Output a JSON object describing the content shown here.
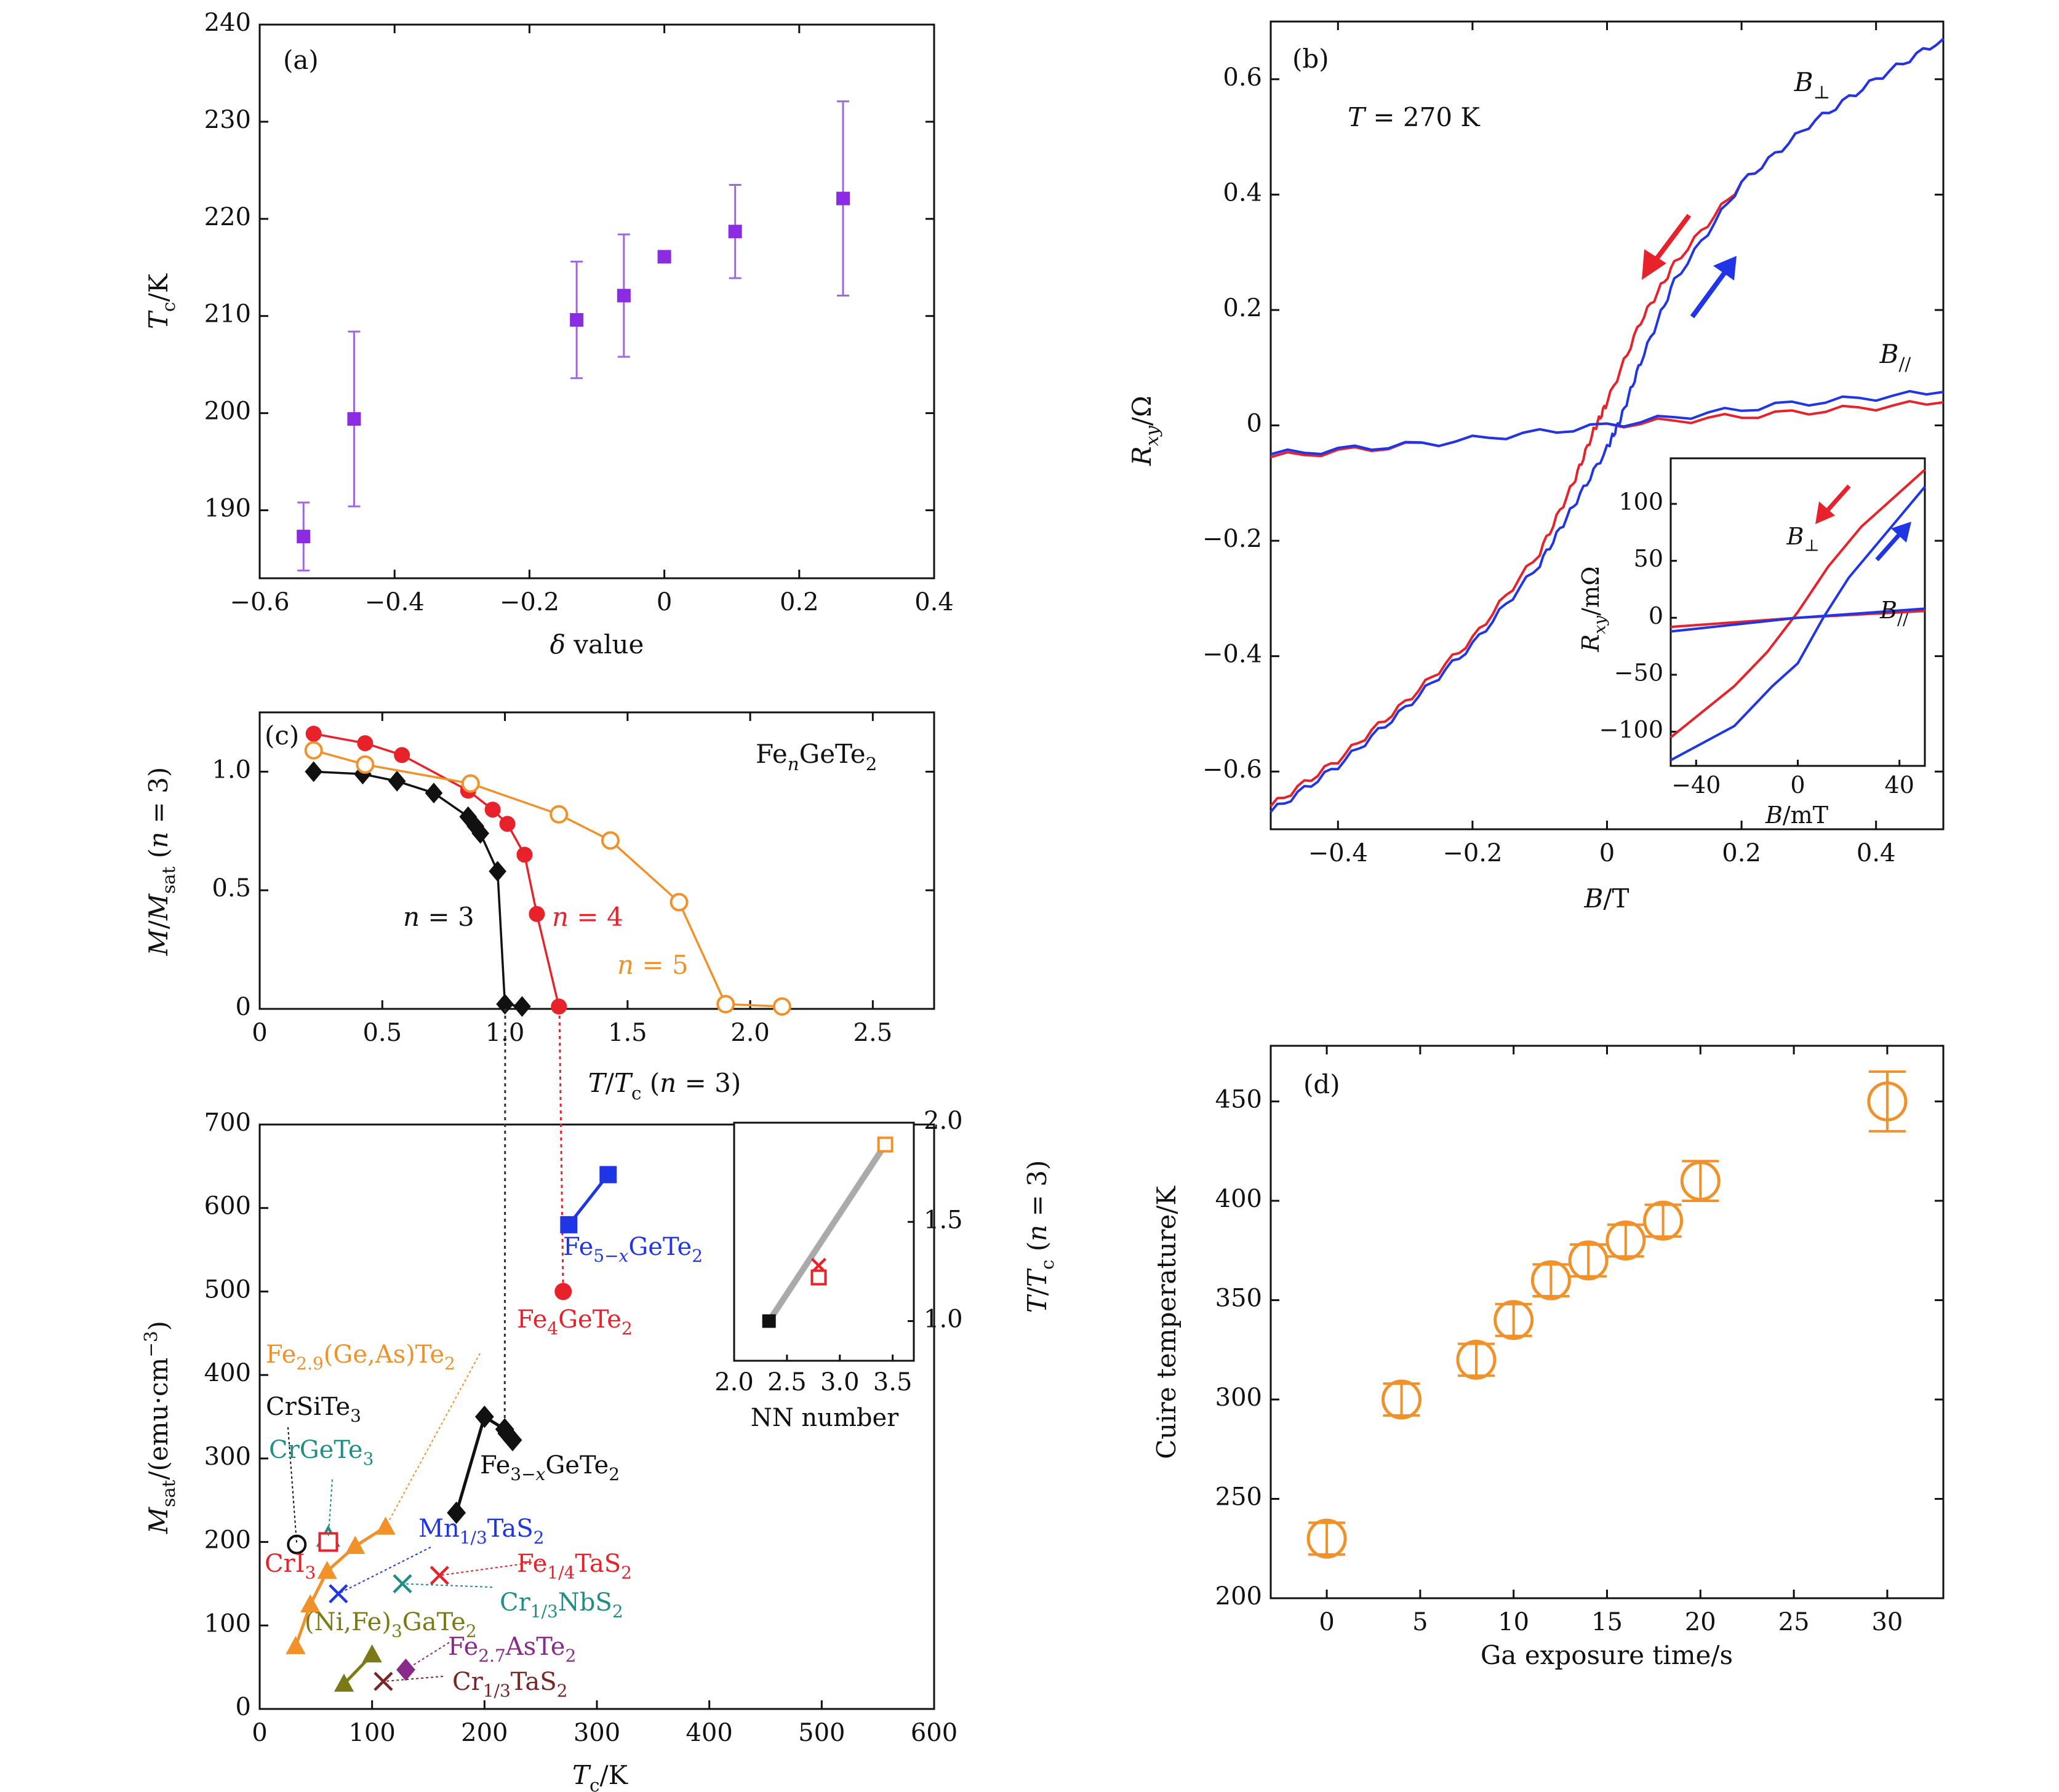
{
  "colors": {
    "purple": "#8b2be2",
    "errbar": "#a066e0",
    "red": "#e8222a",
    "blue": "#1f35e6",
    "orange": "#f0912a",
    "black": "#111111",
    "teal": "#1f8f86",
    "olive": "#7a7a16",
    "violet": "#8a2a8a",
    "brown": "#7a2424",
    "gray": "#aaaaaa"
  },
  "panels": {
    "a": {
      "label": "(a)",
      "xlabel": "δ value",
      "ylabel": "Tc/K"
    },
    "b": {
      "label": "(b)",
      "annotation": "T = 270 K",
      "xlabel": "B/T",
      "ylabel": "Rxy/Ω",
      "series": [
        "B⊥",
        "B//"
      ],
      "inset": {
        "xlabel": "B/mT",
        "ylabel": "Rxy/mΩ",
        "series": [
          "B⊥",
          "B//"
        ]
      }
    },
    "c": {
      "label": "(c)",
      "title": "FenGeTe2",
      "xlabel": "T/Tc (n = 3)",
      "ylabel": "M/Msat (n = 3)",
      "series": [
        "n = 3",
        "n = 4",
        "n = 5"
      ]
    },
    "c_lower": {
      "xlabel": "Tc/K",
      "ylabel": "Msat/(emu·cm⁻³)",
      "labels": [
        "Fe5−xGeTe2",
        "Fe4GeTe2",
        "Fe2.9(Ge,As)Te2",
        "CrSiTe3",
        "CrGeTe3",
        "Fe3−xGeTe2",
        "Mn1/3TaS2",
        "CrI3",
        "Fe1/4TaS2",
        "Cr1/3NbS2",
        "(Ni,Fe)3GaTe2",
        "Fe2.7AsTe2",
        "Cr1/3TaS2"
      ],
      "inset": {
        "xlabel": "NN number",
        "ylabel": "T/Tc (n = 3)"
      }
    },
    "d": {
      "label": "(d)",
      "xlabel": "Ga exposure time/s",
      "ylabel": "Cuire temperature/K"
    }
  },
  "chart_data": [
    {
      "panel": "a",
      "type": "scatter",
      "x": [
        -0.535,
        -0.46,
        -0.13,
        -0.06,
        0.0,
        0.105,
        0.265
      ],
      "y": [
        187.3,
        199.4,
        209.6,
        212.1,
        216.1,
        218.7,
        222.1
      ],
      "yerr": [
        3.5,
        9.0,
        6.0,
        6.3,
        0.5,
        4.8,
        10.0
      ],
      "xlim": [
        -0.6,
        0.4
      ],
      "ylim": [
        183,
        240
      ],
      "xticks": [
        -0.6,
        -0.4,
        -0.2,
        0,
        0.2,
        0.4
      ],
      "xtick_labels": [
        "−0.6",
        "−0.4",
        "−0.2",
        "0",
        "0.2",
        "0.4"
      ],
      "yticks": [
        190,
        200,
        210,
        220,
        230,
        240
      ],
      "ytick_labels": [
        "190",
        "200",
        "210",
        "220",
        "230",
        "240"
      ]
    },
    {
      "panel": "b",
      "type": "line",
      "xlim": [
        -0.5,
        0.5
      ],
      "ylim": [
        -0.7,
        0.7
      ],
      "xticks": [
        -0.4,
        -0.2,
        0,
        0.2,
        0.4
      ],
      "xtick_labels": [
        "−0.4",
        "−0.2",
        "0",
        "0.2",
        "0.4"
      ],
      "yticks": [
        -0.6,
        -0.4,
        -0.2,
        0,
        0.2,
        0.4,
        0.6
      ],
      "ytick_labels": [
        "−0.6",
        "−0.4",
        "−0.2",
        "0",
        "0.2",
        "0.4",
        "0.6"
      ],
      "series": [
        {
          "name": "B⊥",
          "sweep": "down",
          "color": "red",
          "x": [
            -0.5,
            -0.4,
            -0.3,
            -0.2,
            -0.1,
            -0.05,
            -0.02,
            0.0,
            0.05,
            0.1,
            0.2,
            0.3,
            0.4,
            0.5
          ],
          "y": [
            -0.66,
            -0.58,
            -0.48,
            -0.37,
            -0.22,
            -0.1,
            -0.01,
            0.04,
            0.18,
            0.28,
            0.42,
            0.52,
            0.6,
            0.67
          ]
        },
        {
          "name": "B⊥",
          "sweep": "up",
          "color": "blue",
          "x": [
            -0.5,
            -0.4,
            -0.3,
            -0.2,
            -0.1,
            -0.05,
            0.0,
            0.02,
            0.05,
            0.1,
            0.2,
            0.3,
            0.4,
            0.5
          ],
          "y": [
            -0.67,
            -0.59,
            -0.49,
            -0.38,
            -0.24,
            -0.14,
            -0.04,
            0.01,
            0.11,
            0.25,
            0.42,
            0.52,
            0.6,
            0.67
          ]
        },
        {
          "name": "B//",
          "sweep": "down",
          "color": "red",
          "x": [
            -0.5,
            -0.25,
            0.0,
            0.25,
            0.5
          ],
          "y": [
            -0.055,
            -0.03,
            0.0,
            0.02,
            0.04
          ]
        },
        {
          "name": "B//",
          "sweep": "up",
          "color": "blue",
          "x": [
            -0.5,
            -0.25,
            0.0,
            0.25,
            0.5
          ],
          "y": [
            -0.05,
            -0.03,
            0.0,
            0.035,
            0.058
          ]
        }
      ],
      "inset": {
        "xlim": [
          -50,
          50
        ],
        "ylim": [
          -130,
          140
        ],
        "xticks": [
          -40,
          0,
          40
        ],
        "xtick_labels": [
          "−40",
          "0",
          "40"
        ],
        "yticks": [
          -100,
          -50,
          0,
          50,
          100
        ],
        "ytick_labels": [
          "−100",
          "−50",
          "0",
          "50",
          "100"
        ],
        "series": [
          {
            "name": "B⊥",
            "sweep": "down",
            "color": "red",
            "x": [
              -50,
              -25,
              -12,
              0,
              12,
              25,
              50
            ],
            "y": [
              -105,
              -60,
              -30,
              5,
              45,
              80,
              130
            ]
          },
          {
            "name": "B⊥",
            "sweep": "up",
            "color": "blue",
            "x": [
              -50,
              -25,
              -10,
              0,
              10,
              20,
              35,
              50
            ],
            "y": [
              -125,
              -95,
              -60,
              -40,
              0,
              35,
              75,
              115
            ]
          },
          {
            "name": "B//",
            "sweep": "down",
            "color": "red",
            "x": [
              -50,
              0,
              50
            ],
            "y": [
              -8,
              0,
              6
            ]
          },
          {
            "name": "B//",
            "sweep": "up",
            "color": "blue",
            "x": [
              -50,
              0,
              50
            ],
            "y": [
              -12,
              0,
              8
            ]
          }
        ]
      }
    },
    {
      "panel": "c",
      "type": "line",
      "xlim": [
        0,
        2.75
      ],
      "ylim": [
        0,
        1.25
      ],
      "xticks": [
        0,
        0.5,
        1.0,
        1.5,
        2.0,
        2.5
      ],
      "xtick_labels": [
        "0",
        "0.5",
        "1.0",
        "1.5",
        "2.0",
        "2.5"
      ],
      "yticks": [
        0,
        0.5,
        1.0
      ],
      "ytick_labels": [
        "0",
        "0.5",
        "1.0"
      ],
      "series": [
        {
          "name": "n = 3",
          "color": "black",
          "marker": "diamond",
          "x": [
            0.22,
            0.42,
            0.56,
            0.71,
            0.85,
            0.88,
            0.9,
            0.97,
            1.0,
            1.07
          ],
          "y": [
            1.0,
            0.99,
            0.96,
            0.91,
            0.81,
            0.77,
            0.74,
            0.58,
            0.02,
            0.01
          ]
        },
        {
          "name": "n = 4",
          "color": "red",
          "marker": "circle",
          "x": [
            0.22,
            0.43,
            0.58,
            0.85,
            0.95,
            1.01,
            1.08,
            1.13,
            1.22
          ],
          "y": [
            1.16,
            1.12,
            1.07,
            0.92,
            0.84,
            0.78,
            0.65,
            0.4,
            0.01
          ]
        },
        {
          "name": "n = 5",
          "color": "orange",
          "marker": "open-circle",
          "x": [
            0.22,
            0.43,
            0.86,
            1.22,
            1.43,
            1.71,
            1.9,
            2.13
          ],
          "y": [
            1.09,
            1.03,
            0.95,
            0.82,
            0.71,
            0.45,
            0.02,
            0.01
          ]
        }
      ]
    },
    {
      "panel": "c_lower",
      "type": "scatter",
      "xlim": [
        0,
        600
      ],
      "ylim": [
        0,
        700
      ],
      "xticks": [
        0,
        100,
        200,
        300,
        400,
        500,
        600
      ],
      "xtick_labels": [
        "0",
        "100",
        "200",
        "300",
        "400",
        "500",
        "600"
      ],
      "yticks": [
        0,
        100,
        200,
        300,
        400,
        500,
        600,
        700
      ],
      "ytick_labels": [
        "0",
        "100",
        "200",
        "300",
        "400",
        "500",
        "600",
        "700"
      ],
      "series": [
        {
          "name": "Fe5−xGeTe2",
          "color": "blue",
          "marker": "square",
          "x": [
            275,
            310
          ],
          "y": [
            580,
            640
          ]
        },
        {
          "name": "Fe4GeTe2",
          "color": "red",
          "marker": "circle",
          "x": [
            270
          ],
          "y": [
            500
          ]
        },
        {
          "name": "Fe3−xGeTe2",
          "color": "black",
          "marker": "diamond",
          "x": [
            175,
            200,
            218,
            220,
            225
          ],
          "y": [
            235,
            350,
            335,
            330,
            322
          ]
        },
        {
          "name": "Fe2.9(Ge,As)Te2",
          "color": "orange",
          "marker": "triangle",
          "x": [
            32,
            45,
            60,
            85,
            112
          ],
          "y": [
            75,
            125,
            165,
            195,
            218
          ]
        },
        {
          "name": "CrSiTe3",
          "color": "black",
          "marker": "open-circle",
          "x": [
            33
          ],
          "y": [
            197
          ]
        },
        {
          "name": "CrGeTe3",
          "color": "teal",
          "marker": "open-triangle",
          "x": [
            61
          ],
          "y": [
            205
          ]
        },
        {
          "name": "CrI3",
          "color": "red",
          "marker": "open-square",
          "x": [
            61
          ],
          "y": [
            200
          ]
        },
        {
          "name": "Mn1/3TaS2",
          "color": "blue",
          "marker": "x",
          "x": [
            70
          ],
          "y": [
            138
          ]
        },
        {
          "name": "Fe1/4TaS2",
          "color": "red",
          "marker": "x",
          "x": [
            160
          ],
          "y": [
            160
          ]
        },
        {
          "name": "Cr1/3NbS2",
          "color": "teal",
          "marker": "x",
          "x": [
            127
          ],
          "y": [
            150
          ]
        },
        {
          "name": "(Ni,Fe)3GaTe2",
          "color": "olive",
          "marker": "triangle",
          "x": [
            75,
            100
          ],
          "y": [
            30,
            65
          ]
        },
        {
          "name": "Fe2.7AsTe2",
          "color": "violet",
          "marker": "diamond",
          "x": [
            130
          ],
          "y": [
            47
          ]
        },
        {
          "name": "Cr1/3TaS2",
          "color": "brown",
          "marker": "x",
          "x": [
            110
          ],
          "y": [
            33
          ]
        }
      ],
      "inset": {
        "xlim": [
          2.0,
          3.7
        ],
        "ylim": [
          0.8,
          2.0
        ],
        "xticks": [
          2.0,
          2.5,
          3.0,
          3.5
        ],
        "xtick_labels": [
          "2.0",
          "2.5",
          "3.0",
          "3.5"
        ],
        "yticks": [
          1.0,
          1.5,
          2.0
        ],
        "ytick_labels": [
          "1.0",
          "1.5",
          "2.0"
        ],
        "points": [
          {
            "x": 2.33,
            "y": 1.0,
            "color": "black",
            "marker": "square"
          },
          {
            "x": 2.8,
            "y": 1.28,
            "color": "red",
            "marker": "x"
          },
          {
            "x": 2.8,
            "y": 1.22,
            "color": "red",
            "marker": "open-square"
          },
          {
            "x": 3.43,
            "y": 1.89,
            "color": "orange",
            "marker": "open-square"
          }
        ],
        "fit": {
          "x": [
            2.33,
            3.43
          ],
          "y": [
            1.0,
            1.89
          ]
        }
      }
    },
    {
      "panel": "d",
      "type": "scatter",
      "x": [
        0,
        4,
        8,
        10,
        12,
        14,
        16,
        18,
        20,
        30
      ],
      "y": [
        230,
        300,
        320,
        340,
        360,
        370,
        380,
        390,
        410,
        450
      ],
      "yerr": [
        8,
        8,
        8,
        8,
        8,
        8,
        8,
        8,
        10,
        15
      ],
      "xlim": [
        -3,
        33
      ],
      "ylim": [
        200,
        478
      ],
      "xticks": [
        0,
        5,
        10,
        15,
        20,
        25,
        30
      ],
      "xtick_labels": [
        "0",
        "5",
        "10",
        "15",
        "20",
        "25",
        "30"
      ],
      "yticks": [
        200,
        250,
        300,
        350,
        400,
        450
      ],
      "ytick_labels": [
        "200",
        "250",
        "300",
        "350",
        "400",
        "450"
      ]
    }
  ]
}
